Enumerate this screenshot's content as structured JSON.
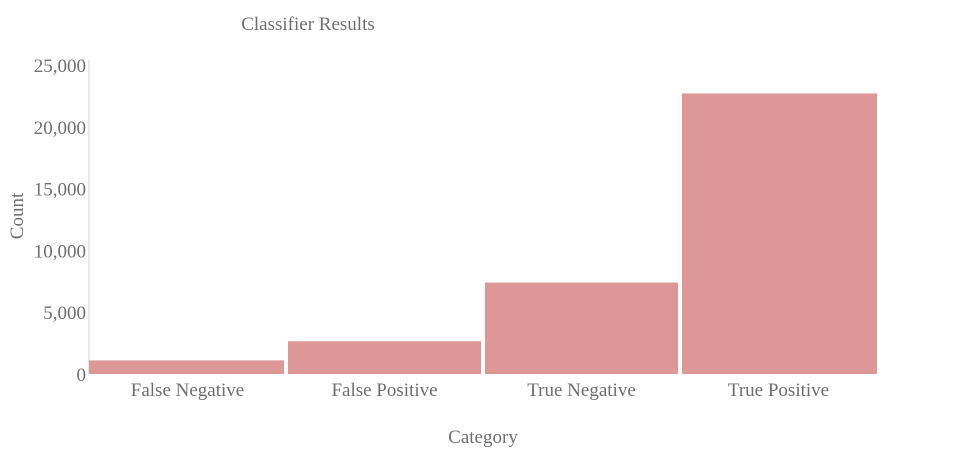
{
  "chart_data": {
    "type": "bar",
    "title": "Classifier Results",
    "xlabel": "Category",
    "ylabel": "Count",
    "categories": [
      "False Negative",
      "False Positive",
      "True Negative",
      "True Positive"
    ],
    "values": [
      1100,
      2650,
      7400,
      22700
    ],
    "ylim": [
      0,
      25000
    ],
    "yticks": [
      0,
      5000,
      10000,
      15000,
      20000,
      25000
    ],
    "ytick_labels": [
      "0",
      "5,000",
      "10,000",
      "15,000",
      "20,000",
      "25,000"
    ],
    "grid": false,
    "legend": "none",
    "bar_color": "#de9797"
  }
}
